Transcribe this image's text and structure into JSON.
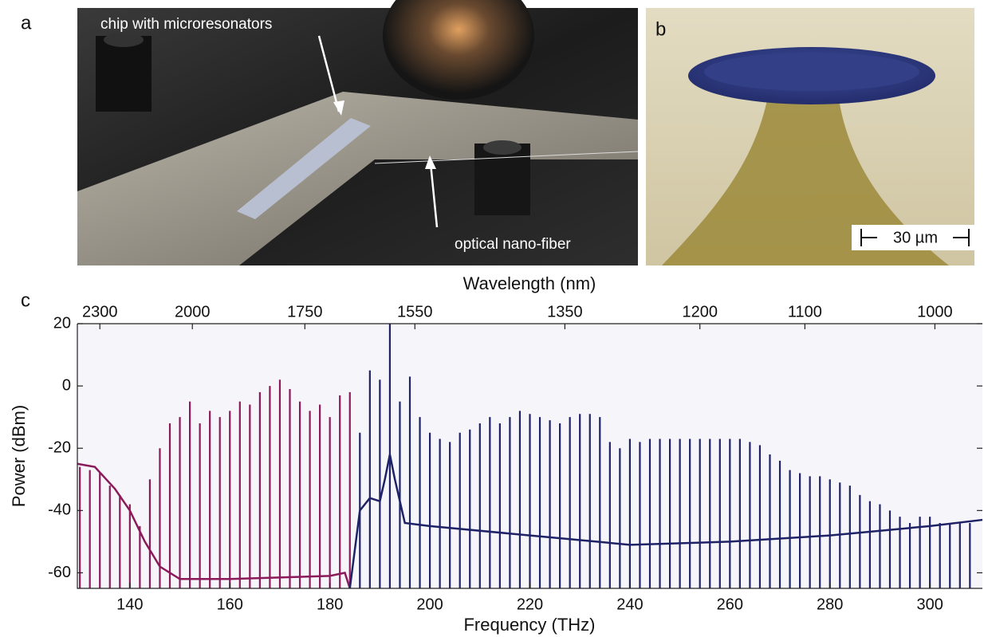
{
  "panel_labels": [
    "a",
    "b",
    "c"
  ],
  "annotations": {
    "chip": "chip with microresonators",
    "fiber": "optical nano-fiber",
    "scale_bar": "30 µm"
  },
  "chart_data": {
    "type": "line",
    "x_label": "Frequency (THz)",
    "x2_label": "Wavelength (nm)",
    "y_label": "Power (dBm)",
    "xlim": [
      129.5,
      310.5
    ],
    "ylim": [
      -65,
      20
    ],
    "xticks": [
      140,
      160,
      180,
      200,
      220,
      240,
      260,
      280,
      300
    ],
    "yticks": [
      20,
      0,
      -20,
      -40,
      -60
    ],
    "x2ticks": [
      {
        "value": 134,
        "label": "2300"
      },
      {
        "value": 152.5,
        "label": "2000"
      },
      {
        "value": 175,
        "label": "1750"
      },
      {
        "value": 197,
        "label": "1550"
      },
      {
        "value": 227,
        "label": "1350"
      },
      {
        "value": 254,
        "label": "1200"
      },
      {
        "value": 275,
        "label": "1100"
      },
      {
        "value": 301,
        "label": "1000"
      }
    ],
    "series": [
      {
        "style": "stem",
        "color": "#8b1a5a",
        "x": [
          130,
          132,
          134,
          136,
          138,
          140,
          142,
          144,
          146,
          148,
          150,
          152,
          154,
          156,
          158,
          160,
          162,
          164,
          166,
          168,
          170,
          172,
          174,
          176,
          178,
          180,
          182,
          184
        ],
        "values": [
          -26,
          -27,
          -28,
          -32,
          -35,
          -38,
          -45,
          -30,
          -20,
          -12,
          -10,
          -5,
          -12,
          -8,
          -10,
          -8,
          -5,
          -6,
          -2,
          0,
          2,
          -1,
          -5,
          -8,
          -6,
          -10,
          -3,
          -2
        ]
      },
      {
        "style": "line",
        "color": "#8b1a5a",
        "x": [
          129.5,
          133,
          137,
          140,
          143,
          146,
          150,
          160,
          180,
          183,
          184
        ],
        "values": [
          -25,
          -26,
          -33,
          -40,
          -50,
          -58,
          -62,
          -62,
          -61,
          -60,
          -65
        ]
      },
      {
        "style": "stem",
        "color": "#1f2266",
        "x": [
          186,
          188,
          190,
          192,
          194,
          196,
          198,
          200,
          202,
          204,
          206,
          208,
          210,
          212,
          214,
          216,
          218,
          220,
          222,
          224,
          226,
          228,
          230,
          232,
          234,
          236,
          238,
          240,
          242,
          244,
          246,
          248,
          250,
          252,
          254,
          256,
          258,
          260,
          262,
          264,
          266,
          268,
          270,
          272,
          274,
          276,
          278,
          280,
          282,
          284,
          286,
          288,
          290,
          292,
          294,
          296,
          298,
          300,
          302,
          304,
          306,
          308
        ],
        "values": [
          -15,
          5,
          2,
          20,
          -5,
          3,
          -10,
          -15,
          -17,
          -18,
          -15,
          -14,
          -12,
          -10,
          -12,
          -10,
          -8,
          -9,
          -10,
          -11,
          -12,
          -10,
          -9,
          -9,
          -10,
          -18,
          -20,
          -17,
          -18,
          -17,
          -17,
          -17,
          -17,
          -17,
          -17,
          -17,
          -17,
          -17,
          -17,
          -18,
          -19,
          -22,
          -24,
          -27,
          -28,
          -29,
          -29,
          -30,
          -31,
          -32,
          -35,
          -37,
          -38,
          -40,
          -42,
          -44,
          -42,
          -42,
          -44,
          -44,
          -44,
          -44
        ]
      },
      {
        "style": "line",
        "color": "#1f2266",
        "x": [
          184,
          186,
          188,
          190,
          191,
          192,
          193,
          195,
          200,
          220,
          240,
          260,
          280,
          300,
          310.5
        ],
        "values": [
          -65,
          -40,
          -36,
          -37,
          -30,
          -22,
          -30,
          -44,
          -45,
          -48,
          -51,
          -50,
          -48,
          -45,
          -43
        ]
      }
    ]
  }
}
